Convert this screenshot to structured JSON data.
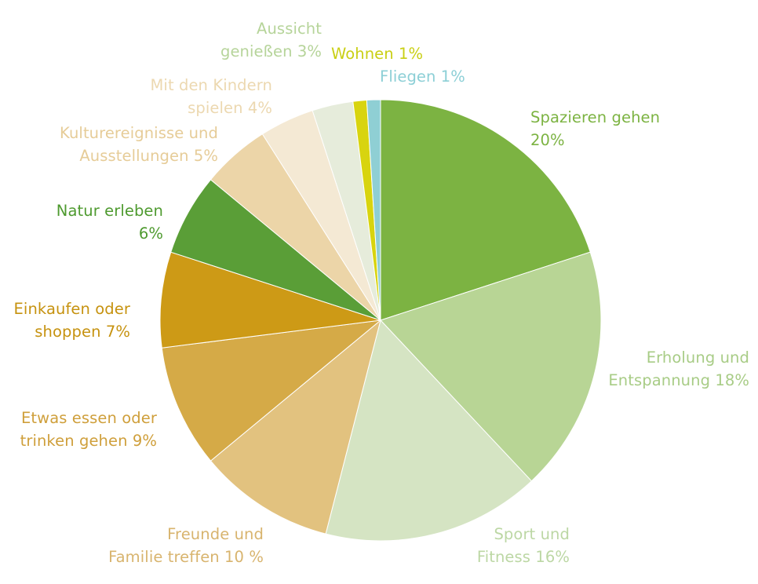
{
  "chart_data": {
    "type": "pie",
    "start_angle_deg": 0,
    "direction": "clockwise",
    "slices": [
      {
        "label_lines": [
          "Spazieren gehen",
          "20%"
        ],
        "value": 20,
        "color": "#7cb342",
        "label_color": "#7cb342"
      },
      {
        "label_lines": [
          "Erholung und",
          "Entspannung 18%"
        ],
        "value": 18,
        "color": "#b8d595",
        "label_color": "#a8cc86"
      },
      {
        "label_lines": [
          "Sport und",
          "Fitness 16%"
        ],
        "value": 16,
        "color": "#d5e4c3",
        "label_color": "#bcd7a4"
      },
      {
        "label_lines": [
          "Freunde und",
          "Familie treffen 10 %"
        ],
        "value": 10,
        "color": "#e2c27f",
        "label_color": "#d8b46e"
      },
      {
        "label_lines": [
          "Etwas essen oder",
          "trinken gehen 9%"
        ],
        "value": 9,
        "color": "#d5aa47",
        "label_color": "#cf9f3b"
      },
      {
        "label_lines": [
          "Einkaufen oder",
          "shoppen  7%"
        ],
        "value": 7,
        "color": "#cd9a16",
        "label_color": "#c6920f"
      },
      {
        "label_lines": [
          "Natur erleben",
          "6%"
        ],
        "value": 6,
        "color": "#5a9e37",
        "label_color": "#4e9a2f"
      },
      {
        "label_lines": [
          "Kulturereignisse und",
          "Ausstellungen 5%"
        ],
        "value": 5,
        "color": "#ecd5a8",
        "label_color": "#e6cc98"
      },
      {
        "label_lines": [
          "Mit den Kindern",
          "spielen 4%"
        ],
        "value": 4,
        "color": "#f4e9d4",
        "label_color": "#ecd8b0"
      },
      {
        "label_lines": [
          "Aussicht",
          "genießen 3%"
        ],
        "value": 3,
        "color": "#e6ecdb",
        "label_color": "#b6d49a"
      },
      {
        "label_lines": [
          "Wohnen 1%"
        ],
        "value": 1,
        "color": "#d8d40f",
        "label_color": "#c9cf14"
      },
      {
        "label_lines": [
          "Fliegen 1%"
        ],
        "value": 1,
        "color": "#8fcfd4",
        "label_color": "#8ccfd6"
      }
    ]
  }
}
